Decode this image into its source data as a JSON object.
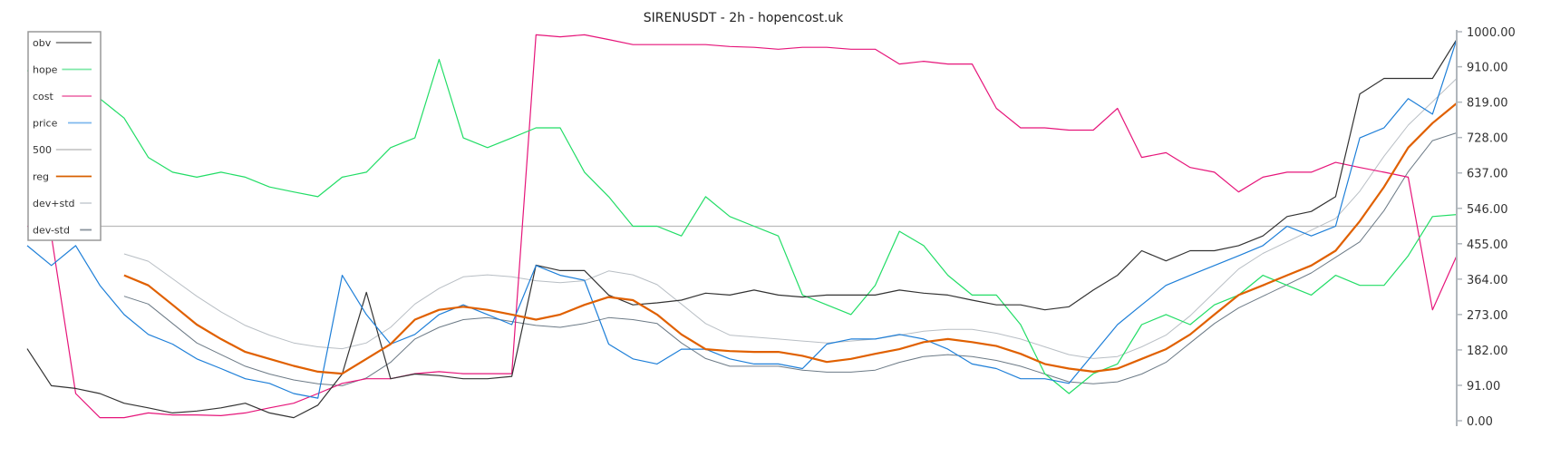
{
  "chart_data": {
    "type": "line",
    "title": "SIRENUSDT - 2h - hopencost.uk",
    "ylim": [
      0,
      1000
    ],
    "y_axis_position": "right",
    "yticks": [
      "0.00",
      "91.00",
      "182.00",
      "273.00",
      "364.00",
      "455.00",
      "546.00",
      "637.00",
      "728.00",
      "819.00",
      "910.00",
      "1000.00"
    ],
    "ytick_values": [
      0,
      91,
      182,
      273,
      364,
      455,
      546,
      637,
      728,
      819,
      910,
      1000
    ],
    "grid": false,
    "legend_placement": "top-left",
    "reference_line": {
      "name": "500",
      "value": 500
    },
    "series": [
      {
        "name": "obv",
        "color": "#333333",
        "width": 1.2,
        "values": [
          185,
          90,
          83,
          70,
          45,
          33,
          20,
          25,
          33,
          45,
          20,
          8,
          40,
          120,
          330,
          108,
          120,
          116,
          108,
          108,
          114,
          400,
          386,
          386,
          323,
          298,
          303,
          310,
          328,
          323,
          336,
          323,
          318,
          323,
          323,
          323,
          336,
          328,
          323,
          310,
          298,
          298,
          285,
          293,
          336,
          374,
          437,
          411,
          437,
          437,
          450,
          475,
          525,
          538,
          576,
          840,
          880,
          880,
          880,
          980
        ]
      },
      {
        "name": "hope",
        "color": "#22dd66",
        "width": 1.2,
        "values": [
          900,
          885,
          880,
          828,
          778,
          677,
          639,
          626,
          639,
          626,
          601,
          588,
          576,
          626,
          639,
          702,
          727,
          929,
          727,
          702,
          727,
          753,
          753,
          639,
          576,
          500,
          500,
          475,
          576,
          525,
          500,
          475,
          323,
          298,
          273,
          348,
          487,
          450,
          374,
          323,
          323,
          247,
          121,
          70,
          121,
          146,
          247,
          273,
          247,
          298,
          323,
          374,
          348,
          323,
          374,
          348,
          348,
          424,
          525,
          530
        ]
      },
      {
        "name": "cost",
        "color": "#e6157a",
        "width": 1.2,
        "values": [
          500,
          475,
          70,
          8,
          8,
          20,
          15,
          15,
          13,
          20,
          33,
          45,
          70,
          96,
          108,
          108,
          121,
          126,
          121,
          121,
          121,
          992,
          987,
          992,
          980,
          967,
          967,
          967,
          967,
          962,
          960,
          955,
          960,
          960,
          955,
          955,
          917,
          924,
          917,
          917,
          803,
          753,
          753,
          747,
          747,
          803,
          677,
          689,
          651,
          639,
          588,
          626,
          639,
          639,
          664,
          651,
          639,
          626,
          285,
          424
        ]
      },
      {
        "name": "price",
        "color": "#1e7fd8",
        "width": 1.2,
        "values": [
          450,
          399,
          450,
          348,
          273,
          222,
          197,
          159,
          134,
          108,
          96,
          70,
          58,
          374,
          273,
          197,
          222,
          273,
          298,
          273,
          247,
          399,
          374,
          361,
          197,
          159,
          146,
          184,
          184,
          159,
          146,
          146,
          134,
          197,
          210,
          210,
          222,
          210,
          184,
          146,
          134,
          108,
          108,
          96,
          172,
          247,
          298,
          348,
          374,
          399,
          424,
          450,
          500,
          475,
          500,
          727,
          753,
          828,
          788,
          980
        ]
      },
      {
        "name": "reg",
        "color": "#e06000",
        "width": 2.2,
        "values": [
          null,
          null,
          null,
          null,
          374,
          348,
          298,
          247,
          210,
          177,
          159,
          141,
          126,
          121,
          159,
          197,
          260,
          285,
          293,
          285,
          273,
          260,
          273,
          298,
          318,
          310,
          273,
          222,
          184,
          179,
          177,
          177,
          167,
          151,
          159,
          172,
          184,
          202,
          210,
          202,
          192,
          172,
          146,
          134,
          126,
          134,
          159,
          184,
          222,
          273,
          323,
          348,
          374,
          399,
          437,
          513,
          601,
          702,
          765,
          816
        ]
      },
      {
        "name": "dev+std",
        "color": "#b8bec4",
        "width": 1,
        "values": [
          null,
          null,
          null,
          null,
          429,
          410,
          365,
          320,
          280,
          245,
          220,
          200,
          190,
          185,
          200,
          240,
          300,
          340,
          370,
          375,
          370,
          360,
          355,
          360,
          385,
          375,
          350,
          300,
          250,
          220,
          215,
          210,
          205,
          200,
          205,
          210,
          220,
          230,
          235,
          235,
          225,
          210,
          190,
          170,
          160,
          165,
          190,
          220,
          270,
          330,
          390,
          430,
          460,
          490,
          520,
          590,
          680,
          760,
          820,
          880
        ]
      },
      {
        "name": "dev-std",
        "color": "#6c7a86",
        "width": 1,
        "values": [
          null,
          null,
          null,
          null,
          320,
          300,
          250,
          200,
          170,
          140,
          120,
          105,
          95,
          90,
          110,
          150,
          210,
          240,
          260,
          265,
          255,
          245,
          240,
          250,
          265,
          260,
          250,
          200,
          160,
          140,
          140,
          140,
          130,
          125,
          125,
          130,
          150,
          165,
          170,
          165,
          155,
          140,
          120,
          100,
          95,
          100,
          120,
          150,
          200,
          250,
          290,
          320,
          350,
          380,
          420,
          460,
          540,
          640,
          720,
          740
        ]
      }
    ],
    "legend": [
      {
        "label": "obv",
        "color": "#888888"
      },
      {
        "label": "hope",
        "color": "#7ee8a8"
      },
      {
        "label": "cost",
        "color": "#ee77b0"
      },
      {
        "label": "price",
        "color": "#7fb8ee"
      },
      {
        "label": "500",
        "color": "#c8c8c8"
      },
      {
        "label": "reg",
        "color": "#d86000"
      },
      {
        "label": "dev+std",
        "color": "#d0d4d8"
      },
      {
        "label": "dev-std",
        "color": "#8a949c"
      }
    ]
  }
}
